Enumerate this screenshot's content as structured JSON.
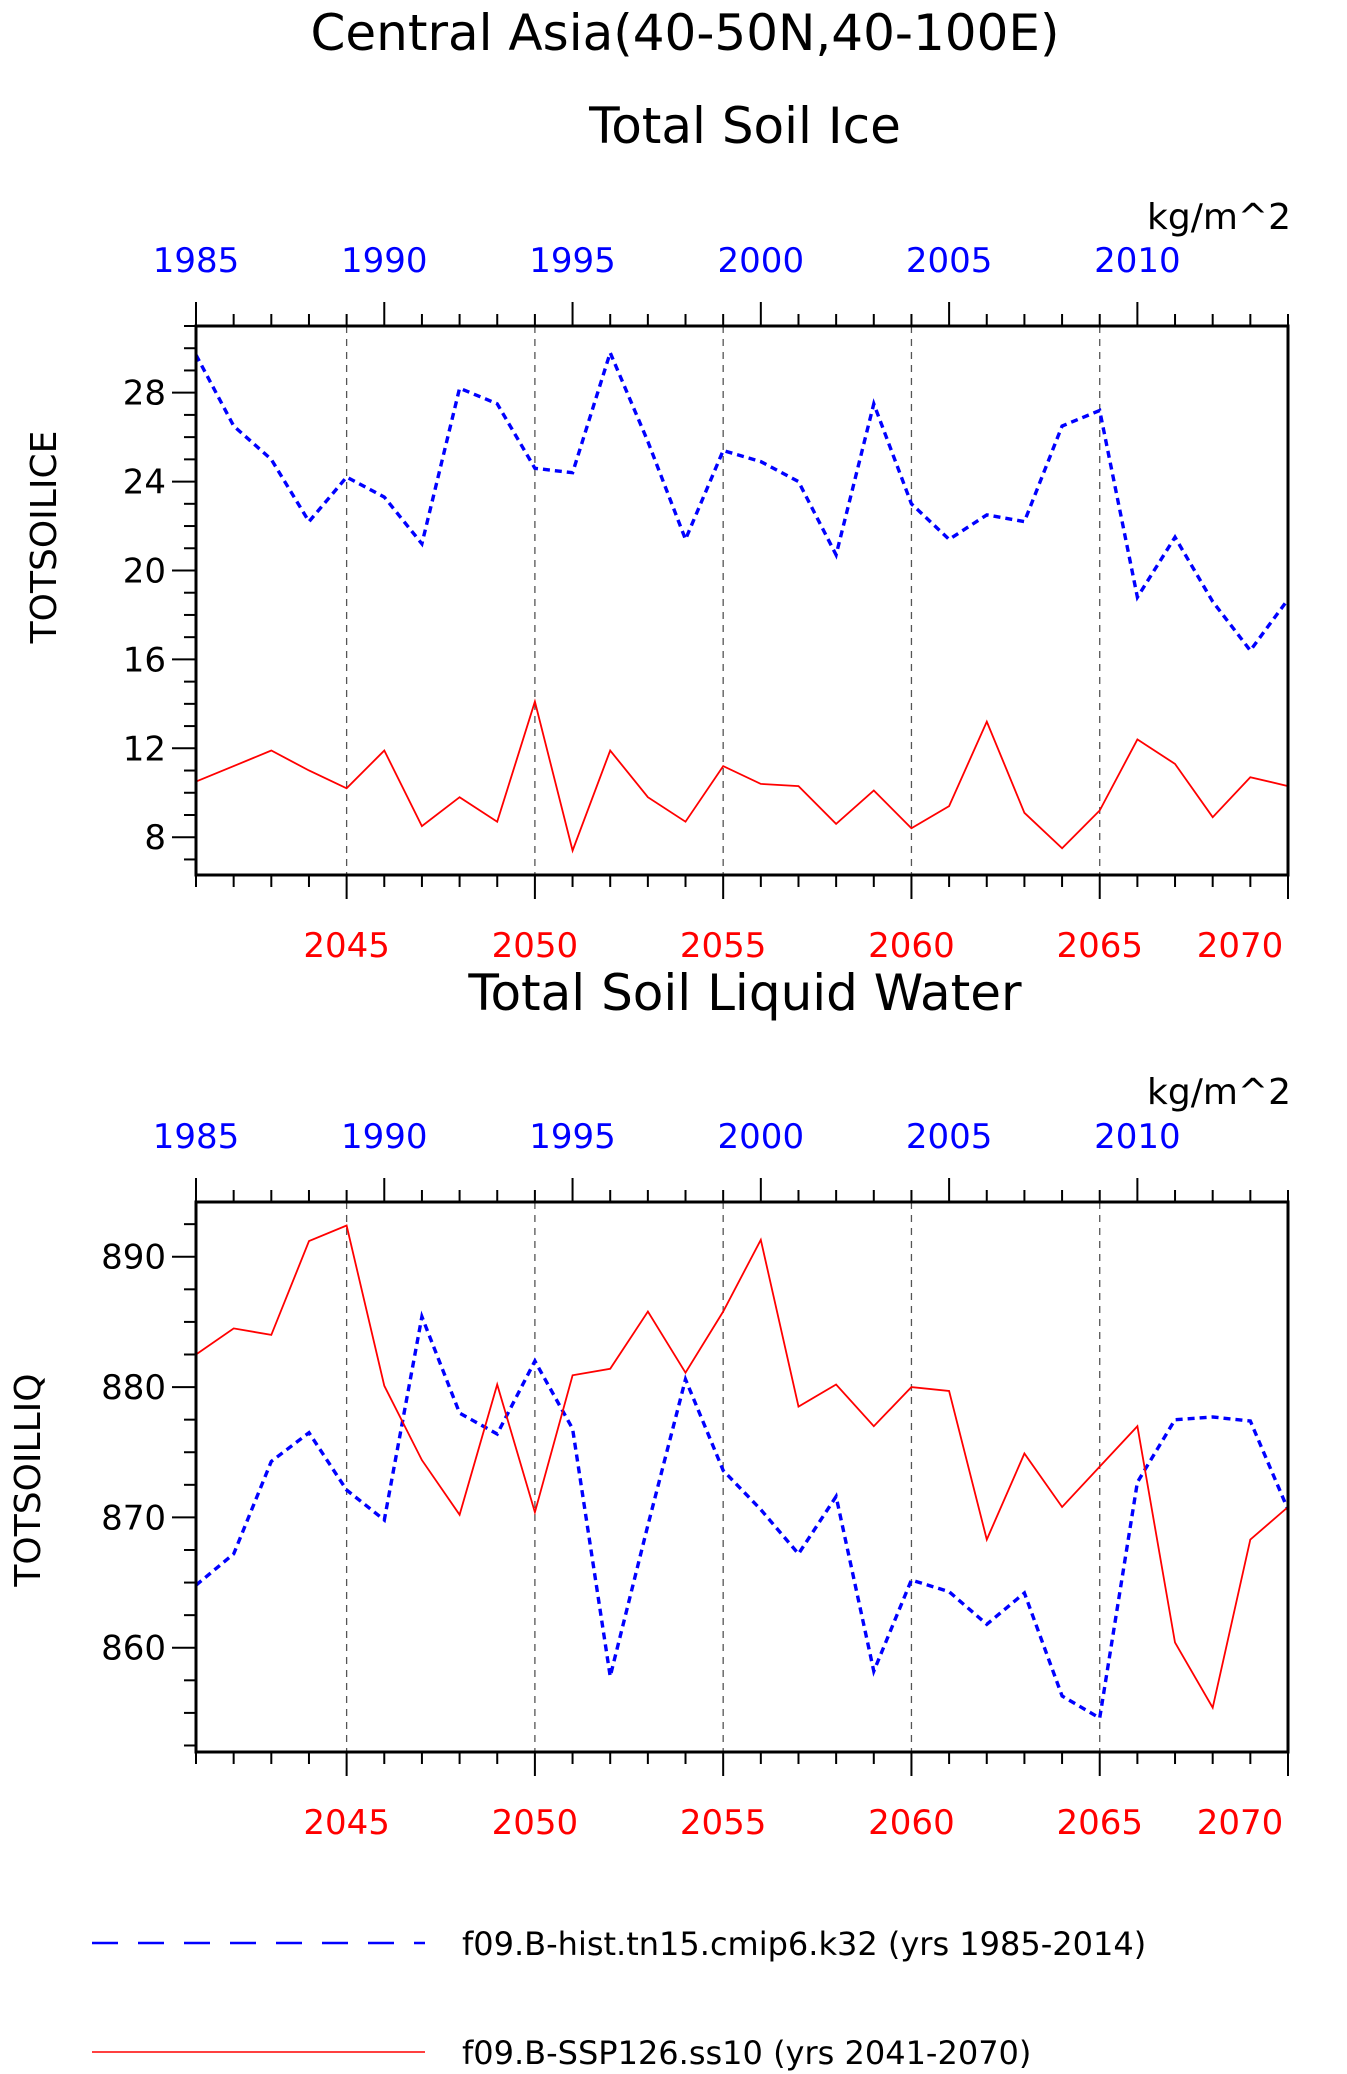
{
  "figure": {
    "title_line1": "Central Asia(40-50N,40-100E)",
    "colors": {
      "hist": "#0000ff",
      "ssp": "#ff0000",
      "axis": "#000000",
      "grid": "#555555"
    }
  },
  "legend": {
    "hist_label": "f09.B-hist.tn15.cmip6.k32 (yrs 1985-2014)",
    "ssp_label": "f09.B-SSP126.ss10 (yrs 2041-2070)"
  },
  "chart_data": [
    {
      "type": "line",
      "title": "Total Soil Ice",
      "units": "kg/m^2",
      "ylabel": "TOTSOILICE",
      "ylim": [
        6.3,
        31
      ],
      "yticks": [
        8,
        12,
        16,
        20,
        24,
        28
      ],
      "top_x_ticks": [
        1985,
        1990,
        1995,
        2000,
        2005,
        2010
      ],
      "bottom_x_ticks": [
        2045,
        2050,
        2055,
        2060,
        2065,
        2070
      ],
      "grid": "vertical dashed",
      "series": [
        {
          "name": "f09.B-hist.tn15.cmip6.k32 (yrs 1985-2014)",
          "x": [
            1985,
            1986,
            1987,
            1988,
            1989,
            1990,
            1991,
            1992,
            1993,
            1994,
            1995,
            1996,
            1997,
            1998,
            1999,
            2000,
            2001,
            2002,
            2003,
            2004,
            2005,
            2006,
            2007,
            2008,
            2009,
            2010,
            2011,
            2012,
            2013,
            2014
          ],
          "values": [
            29.7,
            26.5,
            25.0,
            22.2,
            24.2,
            23.3,
            21.2,
            28.2,
            27.5,
            24.6,
            24.4,
            29.8,
            25.8,
            21.4,
            25.4,
            24.9,
            24.0,
            20.7,
            27.5,
            23.0,
            21.4,
            22.5,
            22.2,
            26.5,
            27.2,
            18.8,
            21.5,
            18.6,
            16.4,
            18.7
          ]
        },
        {
          "name": "f09.B-SSP126.ss10 (yrs 2041-2070)",
          "x": [
            2041,
            2042,
            2043,
            2044,
            2045,
            2046,
            2047,
            2048,
            2049,
            2050,
            2051,
            2052,
            2053,
            2054,
            2055,
            2056,
            2057,
            2058,
            2059,
            2060,
            2061,
            2062,
            2063,
            2064,
            2065,
            2066,
            2067,
            2068,
            2069,
            2070
          ],
          "values": [
            10.5,
            11.2,
            11.9,
            11.0,
            10.2,
            11.9,
            8.5,
            9.8,
            8.7,
            14.1,
            7.4,
            11.9,
            9.8,
            8.7,
            11.2,
            10.4,
            10.3,
            8.6,
            10.1,
            8.4,
            9.4,
            13.2,
            9.1,
            7.5,
            9.2,
            12.4,
            11.3,
            8.9,
            10.7,
            10.3
          ]
        }
      ]
    },
    {
      "type": "line",
      "title": "Total Soil Liquid Water",
      "units": "kg/m^2",
      "ylabel": "TOTSOILLIQ",
      "ylim": [
        852,
        894.2
      ],
      "yticks": [
        860,
        870,
        880,
        890
      ],
      "top_x_ticks": [
        1985,
        1990,
        1995,
        2000,
        2005,
        2010
      ],
      "bottom_x_ticks": [
        2045,
        2050,
        2055,
        2060,
        2065,
        2070
      ],
      "grid": "vertical dashed",
      "series": [
        {
          "name": "f09.B-hist.tn15.cmip6.k32 (yrs 1985-2014)",
          "x": [
            1985,
            1986,
            1987,
            1988,
            1989,
            1990,
            1991,
            1992,
            1993,
            1994,
            1995,
            1996,
            1997,
            1998,
            1999,
            2000,
            2001,
            2002,
            2003,
            2004,
            2005,
            2006,
            2007,
            2008,
            2009,
            2010,
            2011,
            2012,
            2013,
            2014
          ],
          "values": [
            864.8,
            867.2,
            874.3,
            876.5,
            872.1,
            869.8,
            885.4,
            878.0,
            876.4,
            882.0,
            876.8,
            857.8,
            869.4,
            880.6,
            873.6,
            870.6,
            867.2,
            871.6,
            858.2,
            865.2,
            864.3,
            861.8,
            864.2,
            856.3,
            854.6,
            872.7,
            877.5,
            877.7,
            877.4,
            870.6
          ]
        },
        {
          "name": "f09.B-SSP126.ss10 (yrs 2041-2070)",
          "x": [
            2041,
            2042,
            2043,
            2044,
            2045,
            2046,
            2047,
            2048,
            2049,
            2050,
            2051,
            2052,
            2053,
            2054,
            2055,
            2056,
            2057,
            2058,
            2059,
            2060,
            2061,
            2062,
            2063,
            2064,
            2065,
            2066,
            2067,
            2068,
            2069,
            2070
          ],
          "values": [
            882.5,
            884.5,
            884.0,
            891.2,
            892.4,
            880.1,
            874.4,
            870.2,
            880.2,
            870.4,
            880.9,
            881.4,
            885.8,
            881.1,
            885.8,
            891.3,
            878.5,
            880.2,
            877.0,
            880.0,
            879.7,
            868.3,
            874.9,
            870.8,
            873.9,
            877.0,
            860.4,
            855.4,
            868.3,
            870.8
          ]
        }
      ]
    }
  ]
}
